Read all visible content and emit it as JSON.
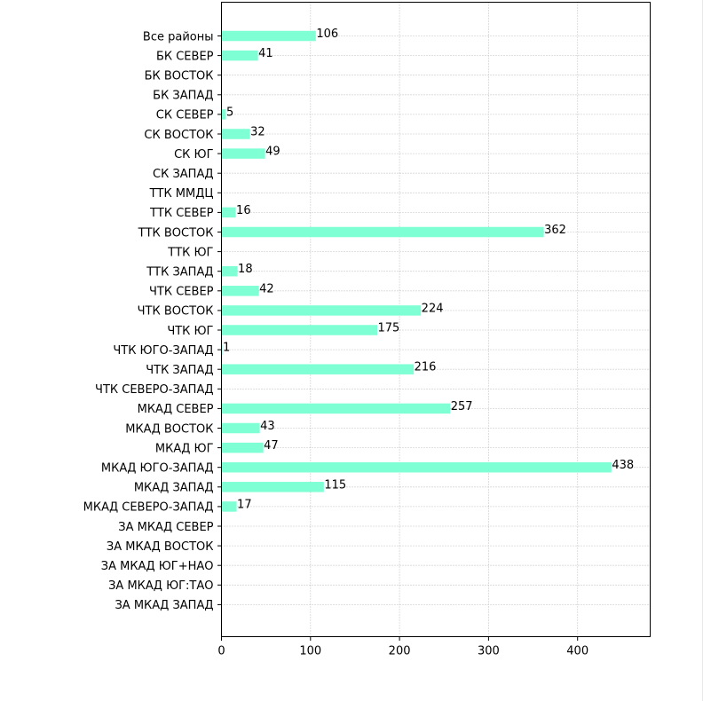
{
  "chart_data": {
    "type": "bar",
    "orientation": "horizontal",
    "categories": [
      "Все районы",
      "БК СЕВЕР",
      "БК ВОСТОК",
      "БК ЗАПАД",
      "СК СЕВЕР",
      "СК ВОСТОК",
      "СК ЮГ",
      "СК ЗАПАД",
      "ТТК ММДЦ",
      "ТТК СЕВЕР",
      "ТТК ВОСТОК",
      "ТТК ЮГ",
      "ТТК ЗАПАД",
      "ЧТК СЕВЕР",
      "ЧТК ВОСТОК",
      "ЧТК ЮГ",
      "ЧТК ЮГО-ЗАПАД",
      "ЧТК ЗАПАД",
      "ЧТК СЕВЕРО-ЗАПАД",
      "МКАД СЕВЕР",
      "МКАД ВОСТОК",
      "МКАД ЮГ",
      "МКАД ЮГО-ЗАПАД",
      "МКАД ЗАПАД",
      "МКАД СЕВЕРО-ЗАПАД",
      "ЗА МКАД СЕВЕР",
      "ЗА МКАД ВОСТОК",
      "ЗА МКАД ЮГ+НАО",
      "ЗА МКАД ЮГ:ТАО",
      "ЗА МКАД ЗАПАД"
    ],
    "values": [
      106,
      41,
      0,
      0,
      5,
      32,
      49,
      0,
      0,
      16,
      362,
      0,
      18,
      42,
      224,
      175,
      1,
      216,
      0,
      257,
      43,
      47,
      438,
      115,
      17,
      0,
      0,
      0,
      0,
      0
    ],
    "data_labels": [
      "106",
      "41",
      "",
      "",
      "5",
      "32",
      "49",
      "",
      "",
      "16",
      "362",
      "",
      "18",
      "42",
      "224",
      "175",
      "1",
      "216",
      "",
      "257",
      "43",
      "47",
      "438",
      "115",
      "17",
      "",
      "",
      "",
      "",
      ""
    ],
    "x_ticks": [
      0,
      100,
      200,
      300,
      400
    ],
    "xlim": [
      0,
      480
    ],
    "bar_color": "#7fffd4",
    "grid": true,
    "grid_style": "dotted",
    "title": "",
    "xlabel": "",
    "ylabel": ""
  }
}
